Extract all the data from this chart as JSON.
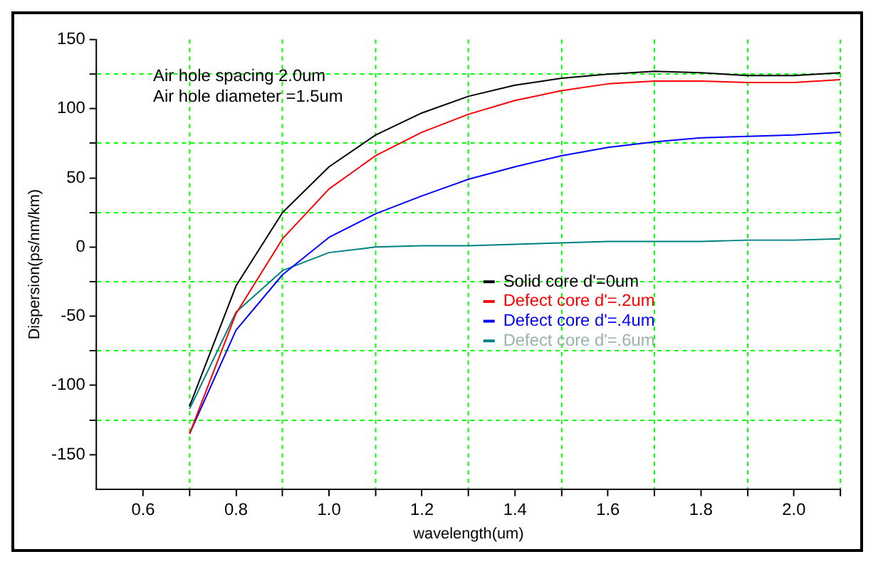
{
  "chart_data": {
    "type": "line",
    "xlabel": "wavelength(um)",
    "ylabel": "Dispersion(ps/nm/km)",
    "annotations": [
      "Air hole spacing 2.0um",
      "Air hole diameter =1.5um"
    ],
    "x": [
      0.7,
      0.8,
      0.9,
      1.0,
      1.1,
      1.2,
      1.3,
      1.4,
      1.5,
      1.6,
      1.7,
      1.8,
      1.9,
      2.0,
      2.1
    ],
    "series": [
      {
        "name": "Solid core d'=0um",
        "color": "#000000",
        "values": [
          -115,
          -28,
          25,
          58,
          81,
          97,
          109,
          117,
          122,
          125,
          127,
          126,
          124,
          124,
          126
        ]
      },
      {
        "name": "Defect core d'=.2um",
        "color": "#ff0000",
        "values": [
          -135,
          -48,
          6,
          42,
          66,
          83,
          96,
          106,
          113,
          118,
          120,
          120,
          119,
          119,
          121
        ]
      },
      {
        "name": "Defect core d'=.4um",
        "color": "#0000ff",
        "values": [
          -135,
          -60,
          -20,
          7,
          24,
          37,
          49,
          58,
          66,
          72,
          76,
          79,
          80,
          81,
          83
        ]
      },
      {
        "name": "Defect core d'=.6um",
        "color": "#008080",
        "values": [
          -117,
          -47,
          -17,
          -4,
          0,
          1,
          1,
          2,
          3,
          4,
          4,
          4,
          5,
          5,
          6
        ]
      }
    ],
    "xlim": [
      0.5,
      2.1
    ],
    "xticks": [
      0.6,
      {
        "value": 0.7,
        "label": null
      },
      0.8,
      {
        "value": 0.9,
        "label": null
      },
      {
        "value": 1.0,
        "label": "1.0"
      },
      {
        "value": 1.1,
        "label": null
      },
      1.2,
      {
        "value": 1.3,
        "label": null
      },
      1.4,
      {
        "value": 1.5,
        "label": null
      },
      1.6,
      {
        "value": 1.7,
        "label": null
      },
      1.8,
      {
        "value": 1.9,
        "label": null
      },
      {
        "value": 2.0,
        "label": "2.0"
      },
      {
        "value": 2.1,
        "label": null
      }
    ],
    "ylim": [
      -175,
      150
    ],
    "yticks": [
      -150,
      {
        "value": -125,
        "label": null
      },
      -100,
      {
        "value": -75,
        "label": null
      },
      -50,
      {
        "value": -25,
        "label": null
      },
      0,
      {
        "value": 25,
        "label": null
      },
      50,
      {
        "value": 75,
        "label": null
      },
      100,
      {
        "value": 125,
        "label": null
      },
      150
    ],
    "grid": true,
    "legend": "center",
    "marker": "none",
    "line_style": "solid"
  }
}
